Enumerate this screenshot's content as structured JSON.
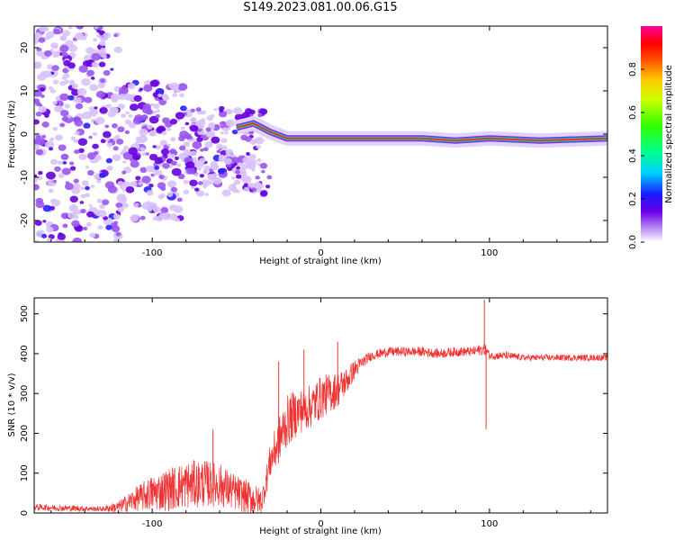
{
  "title": "S149.2023.081.00.06.G15",
  "chart_data": [
    {
      "type": "heatmap",
      "xlabel": "Height of straight line (km)",
      "ylabel": "Frequency (Hz)",
      "xlim": [
        -170,
        170
      ],
      "ylim": [
        -25,
        25
      ],
      "xticks": [
        -100,
        0,
        100
      ],
      "yticks": [
        -20,
        -10,
        0,
        10,
        20
      ],
      "colorbar": {
        "label": "Normalized spectral amplitude",
        "range": [
          0,
          1
        ],
        "ticks": [
          0.0,
          0.2,
          0.4,
          0.6,
          0.8
        ]
      },
      "ridge": [
        {
          "x": -50,
          "freq": 1.5
        },
        {
          "x": -40,
          "freq": 2.5
        },
        {
          "x": -30,
          "freq": 0.5
        },
        {
          "x": -20,
          "freq": -1.0
        },
        {
          "x": -10,
          "freq": -1.0
        },
        {
          "x": 0,
          "freq": -1.0
        },
        {
          "x": 20,
          "freq": -1.0
        },
        {
          "x": 60,
          "freq": -1.0
        },
        {
          "x": 80,
          "freq": -1.5
        },
        {
          "x": 100,
          "freq": -1.0
        },
        {
          "x": 130,
          "freq": -1.5
        },
        {
          "x": 170,
          "freq": -1.0
        }
      ],
      "grid": false
    },
    {
      "type": "line",
      "xlabel": "Height of straight line (km)",
      "ylabel": "SNR (10 * v/v)",
      "xlim": [
        -170,
        170
      ],
      "ylim": [
        0,
        540
      ],
      "xticks": [
        -100,
        0,
        100
      ],
      "yticks": [
        0,
        100,
        200,
        300,
        400,
        500
      ],
      "color": "#ee3333",
      "series": [
        {
          "x": [
            -170,
            -150,
            -130,
            -120,
            -110,
            -100,
            -90,
            -80,
            -70,
            -60,
            -50,
            -40,
            -35,
            -30,
            -25,
            -20,
            -15,
            -10,
            -5,
            0,
            5,
            10,
            15,
            20,
            25,
            30,
            40,
            50,
            60,
            70,
            80,
            90,
            95,
            98,
            100,
            110,
            120,
            140,
            160,
            170
          ],
          "y": [
            15,
            12,
            10,
            15,
            35,
            50,
            60,
            70,
            75,
            70,
            50,
            35,
            30,
            130,
            180,
            230,
            250,
            260,
            270,
            290,
            300,
            310,
            330,
            360,
            380,
            395,
            405,
            405,
            405,
            400,
            405,
            405,
            410,
            410,
            395,
            395,
            390,
            390,
            390,
            390
          ],
          "noise": [
            8,
            8,
            6,
            15,
            30,
            45,
            55,
            60,
            60,
            55,
            45,
            40,
            30,
            45,
            60,
            65,
            60,
            55,
            55,
            55,
            50,
            45,
            35,
            25,
            15,
            12,
            12,
            12,
            12,
            12,
            12,
            12,
            15,
            15,
            10,
            10,
            8,
            8,
            8,
            8
          ]
        }
      ],
      "spikes": [
        {
          "x": -64,
          "y": 210
        },
        {
          "x": -10,
          "y": 410
        },
        {
          "x": 10,
          "y": 430
        },
        {
          "x": -25,
          "y": 380
        },
        {
          "x": 97,
          "y": 535
        },
        {
          "x": 98,
          "y": 210
        }
      ],
      "grid": false
    }
  ]
}
